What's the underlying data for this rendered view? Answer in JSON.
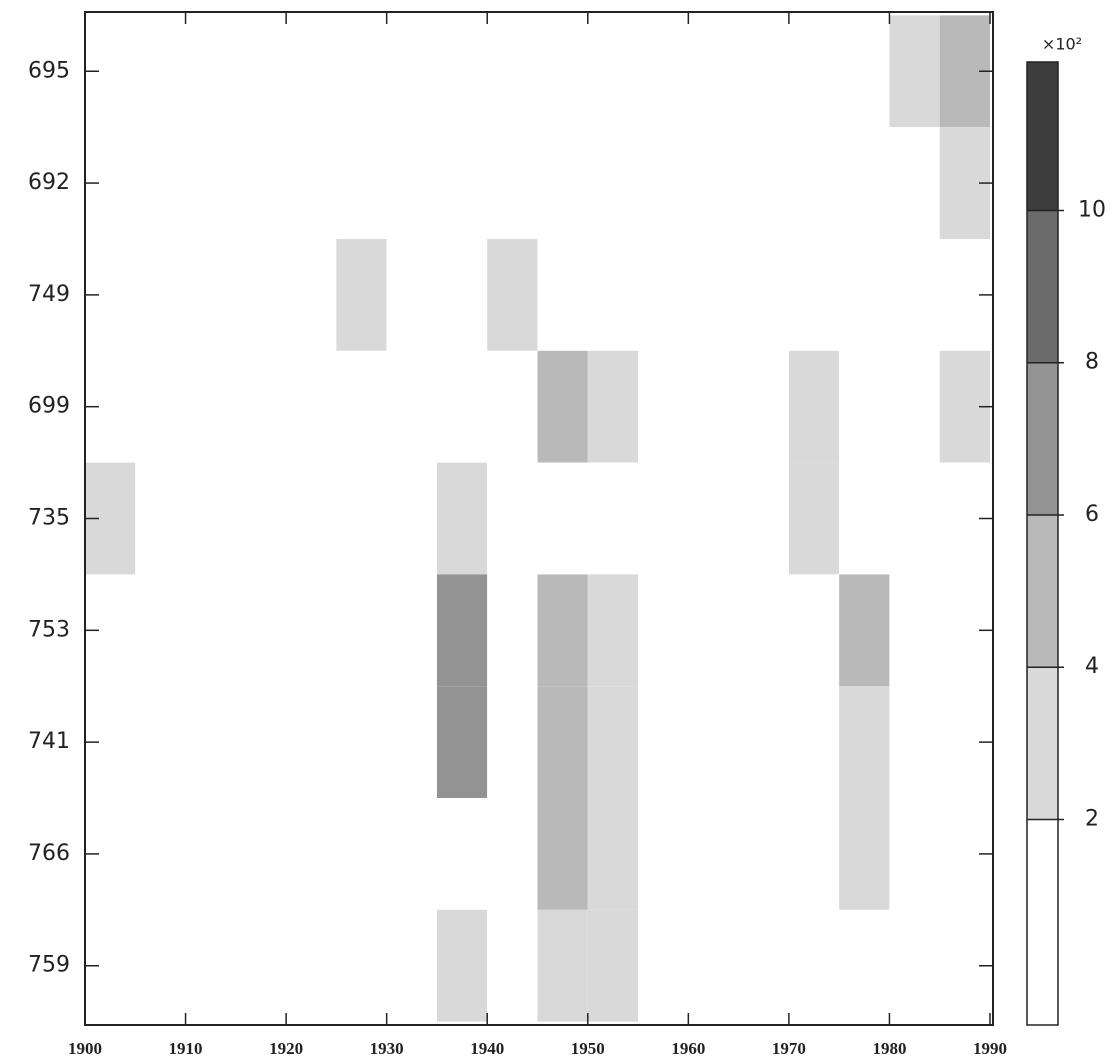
{
  "chart_data": {
    "type": "contour",
    "x": [
      1902.5,
      1907.5,
      1912.5,
      1917.5,
      1922.5,
      1927.5,
      1932.5,
      1937.5,
      1942.5,
      1947.5,
      1952.5,
      1957.5,
      1962.5,
      1967.5,
      1972.5,
      1977.5,
      1982.5,
      1987.5
    ],
    "x_step": 5,
    "xlim": [
      1900,
      1990
    ],
    "xticks": [
      1900,
      1910,
      1920,
      1930,
      1940,
      1950,
      1960,
      1970,
      1980,
      1990
    ],
    "ylim": [
      0.47,
      9.53
    ],
    "yticks": [
      {
        "value": 9,
        "label": "695"
      },
      {
        "value": 8,
        "label": "692"
      },
      {
        "value": 7,
        "label": "749"
      },
      {
        "value": 6,
        "label": "699"
      },
      {
        "value": 5,
        "label": "735"
      },
      {
        "value": 4,
        "label": "753"
      },
      {
        "value": 3,
        "label": "741"
      },
      {
        "value": 2,
        "label": "766"
      },
      {
        "value": 1,
        "label": "759"
      }
    ],
    "z": [
      [
        0,
        0,
        0,
        0,
        0,
        0,
        0,
        0,
        0,
        0,
        0,
        0,
        0,
        1,
        1,
        0,
        3,
        4
      ],
      [
        0,
        0,
        0,
        0,
        0,
        0,
        0,
        0,
        0,
        0,
        0,
        0,
        0,
        0,
        0,
        0,
        1,
        3
      ],
      [
        0,
        0,
        1,
        0,
        0,
        2,
        0,
        0,
        2,
        1,
        0,
        0,
        0,
        0,
        0,
        0,
        0,
        0
      ],
      [
        0,
        0,
        0,
        0,
        0,
        0,
        0,
        0,
        0,
        4,
        2,
        0,
        0,
        1,
        2,
        0,
        0,
        2
      ],
      [
        2,
        0,
        0,
        0,
        0,
        0,
        0,
        3,
        0,
        1,
        0,
        0,
        0,
        0,
        2,
        0,
        0,
        0
      ],
      [
        null,
        null,
        null,
        null,
        null,
        null,
        0,
        6,
        0,
        4,
        3,
        0,
        0,
        0,
        0,
        5,
        0,
        0
      ],
      [
        null,
        null,
        null,
        null,
        null,
        null,
        0,
        6,
        0,
        4,
        3,
        0,
        1,
        0,
        0,
        3,
        0,
        0
      ],
      [
        0,
        0,
        1,
        0,
        0,
        0,
        0,
        1,
        0,
        4,
        3,
        0,
        0,
        0,
        1,
        2,
        0,
        0
      ],
      [
        0,
        0,
        0,
        0,
        0,
        0,
        0,
        2,
        0,
        3,
        3,
        0,
        0,
        0,
        0,
        1,
        0,
        0
      ]
    ],
    "clim": [
      -0.7,
      11.95
    ],
    "cticks": [
      2,
      4,
      6,
      8,
      10
    ],
    "colors": [
      "#ffffff",
      "#d9d9d9",
      "#b9b9b9",
      "#939393",
      "#6b6b6b",
      "#3e3e3e"
    ],
    "colorbar_label": "×10²"
  }
}
